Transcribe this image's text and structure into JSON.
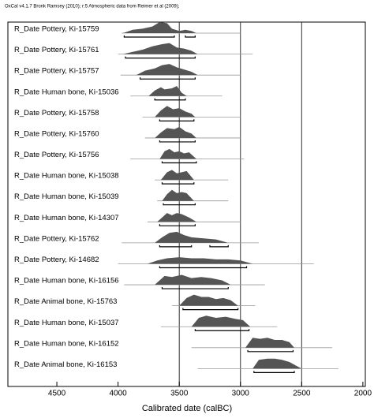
{
  "chart_data": {
    "type": "multiplot",
    "title": "OxCal v4.1.7 Bronk Ramsey (2010); r:5 Atmospheric data from Reimer et al (2009);",
    "xlabel": "Calibrated date (calBC)",
    "xlim": [
      4900,
      1980
    ],
    "xticks": [
      4500,
      4000,
      3500,
      3000,
      2500,
      2000
    ],
    "gridlines": [
      3500,
      3000,
      2500
    ],
    "color": "#555555",
    "rows": [
      {
        "label": "R_Date Pottery, Ki-15759",
        "line": [
          3970,
          3000
        ],
        "dist": {
          "x": [
            3960,
            3880,
            3800,
            3720,
            3660,
            3600,
            3560,
            3500,
            3450,
            3400,
            3360
          ],
          "h": [
            0,
            0.3,
            0.4,
            0.6,
            1,
            0.9,
            0.4,
            0.2,
            0.3,
            0.2,
            0
          ]
        },
        "ranges": [
          [
            3950,
            3540
          ],
          [
            3450,
            3370
          ]
        ]
      },
      {
        "label": "R_Date Pottery, Ki-15761",
        "line": [
          4000,
          2900
        ],
        "dist": {
          "x": [
            3960,
            3880,
            3800,
            3720,
            3640,
            3580,
            3520,
            3460,
            3400,
            3350
          ],
          "h": [
            0,
            0.2,
            0.4,
            0.7,
            0.9,
            1,
            0.6,
            0.5,
            0.3,
            0
          ]
        },
        "ranges": [
          [
            3940,
            3370
          ]
        ]
      },
      {
        "label": "R_Date Pottery, Ki-15757",
        "line": [
          3980,
          3000
        ],
        "dist": {
          "x": [
            3850,
            3780,
            3700,
            3640,
            3580,
            3520,
            3460,
            3400,
            3350
          ],
          "h": [
            0,
            0.4,
            0.6,
            0.9,
            1,
            0.7,
            0.5,
            0.3,
            0
          ]
        },
        "ranges": [
          [
            3820,
            3370
          ]
        ]
      },
      {
        "label": "R_Date Human bone, Ki-15036",
        "line": [
          3900,
          3150
        ],
        "dist": {
          "x": [
            3750,
            3700,
            3650,
            3620,
            3560,
            3520,
            3480,
            3440
          ],
          "h": [
            0,
            0.5,
            0.8,
            0.6,
            0.7,
            0.9,
            0.3,
            0
          ]
        },
        "ranges": [
          [
            3700,
            3450
          ]
        ]
      },
      {
        "label": "R_Date Pottery, Ki-15758",
        "line": [
          3800,
          3000
        ],
        "dist": {
          "x": [
            3700,
            3650,
            3600,
            3550,
            3500,
            3450,
            3400,
            3370
          ],
          "h": [
            0,
            0.6,
            1,
            0.7,
            0.8,
            0.5,
            0.3,
            0
          ]
        },
        "ranges": [
          [
            3660,
            3380
          ]
        ]
      },
      {
        "label": "R_Date Pottery, Ki-15760",
        "line": [
          3780,
          3000
        ],
        "dist": {
          "x": [
            3700,
            3650,
            3600,
            3540,
            3500,
            3450,
            3400,
            3360
          ],
          "h": [
            0,
            0.5,
            0.9,
            0.8,
            1,
            0.6,
            0.4,
            0
          ]
        },
        "ranges": [
          [
            3660,
            3370
          ]
        ]
      },
      {
        "label": "R_Date Pottery, Ki-15756",
        "line": [
          3900,
          2970
        ],
        "dist": {
          "x": [
            3660,
            3620,
            3580,
            3540,
            3500,
            3460,
            3420,
            3360
          ],
          "h": [
            0,
            0.7,
            0.9,
            0.6,
            0.7,
            0.5,
            0.6,
            0
          ]
        },
        "ranges": [
          [
            3640,
            3360
          ]
        ]
      },
      {
        "label": "R_Date Human bone, Ki-15038",
        "line": [
          3700,
          3100
        ],
        "dist": {
          "x": [
            3650,
            3600,
            3560,
            3520,
            3480,
            3440,
            3380
          ],
          "h": [
            0,
            0.7,
            0.9,
            0.6,
            0.7,
            0.8,
            0
          ]
        },
        "ranges": [
          [
            3640,
            3380
          ]
        ]
      },
      {
        "label": "R_Date Human bone, Ki-15039",
        "line": [
          3680,
          3100
        ],
        "dist": {
          "x": [
            3640,
            3600,
            3560,
            3520,
            3480,
            3440,
            3380
          ],
          "h": [
            0,
            0.6,
            1,
            0.7,
            0.8,
            0.7,
            0
          ]
        },
        "ranges": [
          [
            3630,
            3370
          ]
        ]
      },
      {
        "label": "R_Date Human bone, Ki-14307",
        "line": [
          3760,
          3000
        ],
        "dist": {
          "x": [
            3680,
            3640,
            3600,
            3560,
            3520,
            3480,
            3420,
            3360
          ],
          "h": [
            0,
            0.4,
            0.8,
            0.6,
            0.8,
            0.7,
            0.4,
            0
          ]
        },
        "ranges": [
          [
            3660,
            3370
          ]
        ]
      },
      {
        "label": "R_Date Pottery, Ki-15762",
        "line": [
          3970,
          2850
        ],
        "dist": {
          "x": [
            3700,
            3640,
            3580,
            3520,
            3460,
            3400,
            3300,
            3200,
            3100
          ],
          "h": [
            0,
            0.5,
            0.9,
            1,
            0.7,
            0.5,
            0.4,
            0.3,
            0
          ]
        },
        "ranges": [
          [
            3660,
            3400
          ],
          [
            3250,
            3100
          ]
        ]
      },
      {
        "label": "R_Date Pottery, Ki-14682",
        "line": [
          4000,
          2400
        ],
        "dist": {
          "x": [
            3760,
            3680,
            3600,
            3500,
            3400,
            3300,
            3200,
            3100,
            3000,
            2900
          ],
          "h": [
            0,
            0.3,
            0.5,
            0.6,
            0.5,
            0.5,
            0.4,
            0.4,
            0.3,
            0
          ]
        },
        "ranges": [
          [
            3660,
            2950
          ]
        ]
      },
      {
        "label": "R_Date Human bone, Ki-16156",
        "line": [
          3950,
          2800
        ],
        "dist": {
          "x": [
            3700,
            3620,
            3560,
            3480,
            3400,
            3320,
            3240,
            3150,
            3080
          ],
          "h": [
            0,
            0.8,
            0.7,
            0.9,
            0.6,
            0.7,
            0.6,
            0.4,
            0
          ]
        },
        "ranges": [
          [
            3640,
            3100
          ]
        ]
      },
      {
        "label": "R_Date Animal bone, Ki-15763",
        "line": [
          3560,
          2880
        ],
        "dist": {
          "x": [
            3500,
            3440,
            3380,
            3320,
            3260,
            3200,
            3140,
            3080,
            3020
          ],
          "h": [
            0,
            0.7,
            1,
            0.8,
            0.8,
            0.6,
            0.7,
            0.5,
            0
          ]
        },
        "ranges": [
          [
            3470,
            3020
          ]
        ]
      },
      {
        "label": "R_Date Human bone, Ki-15037",
        "line": [
          3650,
          2700
        ],
        "dist": {
          "x": [
            3400,
            3340,
            3280,
            3200,
            3120,
            3040,
            2980,
            2920
          ],
          "h": [
            0,
            0.8,
            1,
            0.8,
            0.9,
            0.7,
            0.6,
            0
          ]
        },
        "ranges": [
          [
            3370,
            2930
          ]
        ]
      },
      {
        "label": "R_Date Human bone, Ki-16152",
        "line": [
          3400,
          2250
        ],
        "dist": {
          "x": [
            2960,
            2900,
            2840,
            2780,
            2720,
            2660,
            2600,
            2560
          ],
          "h": [
            0,
            0.9,
            0.8,
            0.9,
            0.7,
            0.7,
            0.5,
            0
          ]
        },
        "ranges": [
          [
            2940,
            2570
          ]
        ]
      },
      {
        "label": "R_Date Animal bone, Ki-16153",
        "line": [
          3350,
          2200
        ],
        "dist": {
          "x": [
            2900,
            2850,
            2780,
            2720,
            2660,
            2600,
            2550,
            2500
          ],
          "h": [
            0,
            0.8,
            0.9,
            0.9,
            0.8,
            0.6,
            0.3,
            0
          ]
        },
        "ranges": [
          [
            2890,
            2560
          ]
        ]
      }
    ]
  }
}
